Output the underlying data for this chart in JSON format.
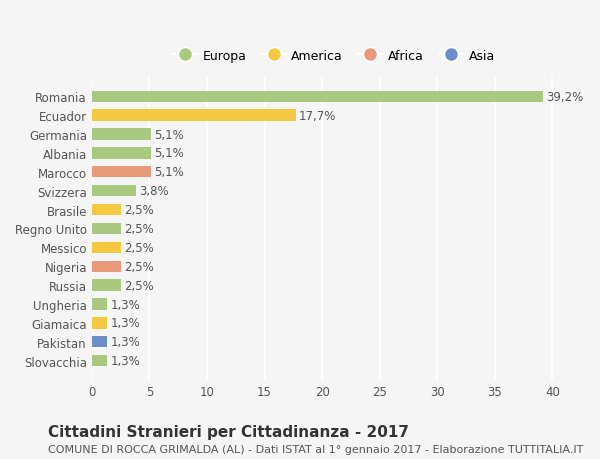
{
  "categories": [
    "Romania",
    "Ecuador",
    "Germania",
    "Albania",
    "Marocco",
    "Svizzera",
    "Brasile",
    "Regno Unito",
    "Messico",
    "Nigeria",
    "Russia",
    "Ungheria",
    "Giamaica",
    "Pakistan",
    "Slovacchia"
  ],
  "values": [
    39.2,
    17.7,
    5.1,
    5.1,
    5.1,
    3.8,
    2.5,
    2.5,
    2.5,
    2.5,
    2.5,
    1.3,
    1.3,
    1.3,
    1.3
  ],
  "labels": [
    "39,2%",
    "17,7%",
    "5,1%",
    "5,1%",
    "5,1%",
    "3,8%",
    "2,5%",
    "2,5%",
    "2,5%",
    "2,5%",
    "2,5%",
    "1,3%",
    "1,3%",
    "1,3%",
    "1,3%"
  ],
  "colors": [
    "#a8c97f",
    "#f5c842",
    "#a8c97f",
    "#a8c97f",
    "#e8997a",
    "#a8c97f",
    "#f5c842",
    "#a8c97f",
    "#f5c842",
    "#e8997a",
    "#a8c97f",
    "#a8c97f",
    "#f5c842",
    "#6a8fc8",
    "#a8c97f"
  ],
  "legend_labels": [
    "Europa",
    "America",
    "Africa",
    "Asia"
  ],
  "legend_colors": [
    "#a8c97f",
    "#f5c842",
    "#e8997a",
    "#6a8fc8"
  ],
  "xlim": [
    0,
    42
  ],
  "xticks": [
    0,
    5,
    10,
    15,
    20,
    25,
    30,
    35,
    40
  ],
  "title": "Cittadini Stranieri per Cittadinanza - 2017",
  "subtitle": "COMUNE DI ROCCA GRIMALDA (AL) - Dati ISTAT al 1° gennaio 2017 - Elaborazione TUTTITALIA.IT",
  "bg_color": "#f5f5f5",
  "bar_height": 0.6,
  "grid_color": "#ffffff",
  "title_fontsize": 11,
  "subtitle_fontsize": 8,
  "label_fontsize": 8.5,
  "tick_fontsize": 8.5
}
